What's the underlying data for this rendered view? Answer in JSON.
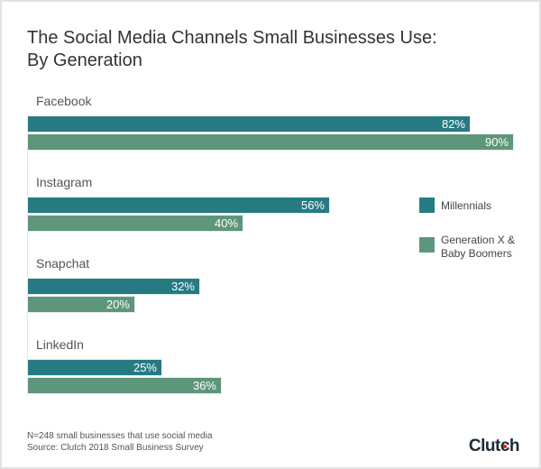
{
  "chart_data": {
    "type": "bar",
    "orientation": "horizontal",
    "title": "The Social Media Channels Small Businesses Use: By Generation",
    "title_lines": [
      "The Social Media Channels Small Businesses Use:",
      "By Generation"
    ],
    "categories": [
      "Facebook",
      "Instagram",
      "Snapchat",
      "LinkedIn"
    ],
    "series": [
      {
        "name": "Millennials",
        "values": [
          82,
          56,
          32,
          25
        ],
        "labels": [
          "82%",
          "56%",
          "32%",
          "25%"
        ],
        "color": "#267b83"
      },
      {
        "name": "Generation X & Baby Boomers",
        "name_lines": [
          "Generation X &",
          "Baby Boomers"
        ],
        "values": [
          90,
          40,
          20,
          36
        ],
        "labels": [
          "90%",
          "40%",
          "20%",
          "36%"
        ],
        "color": "#5e967c"
      }
    ],
    "xlim": [
      0,
      90
    ],
    "grid": false,
    "legend_position": "right"
  },
  "footnote": {
    "line1": "N=248 small businesses that use social media",
    "line2": "Source: Clutch 2018 Small Business Survey"
  },
  "logo": {
    "text": "Clutch"
  }
}
